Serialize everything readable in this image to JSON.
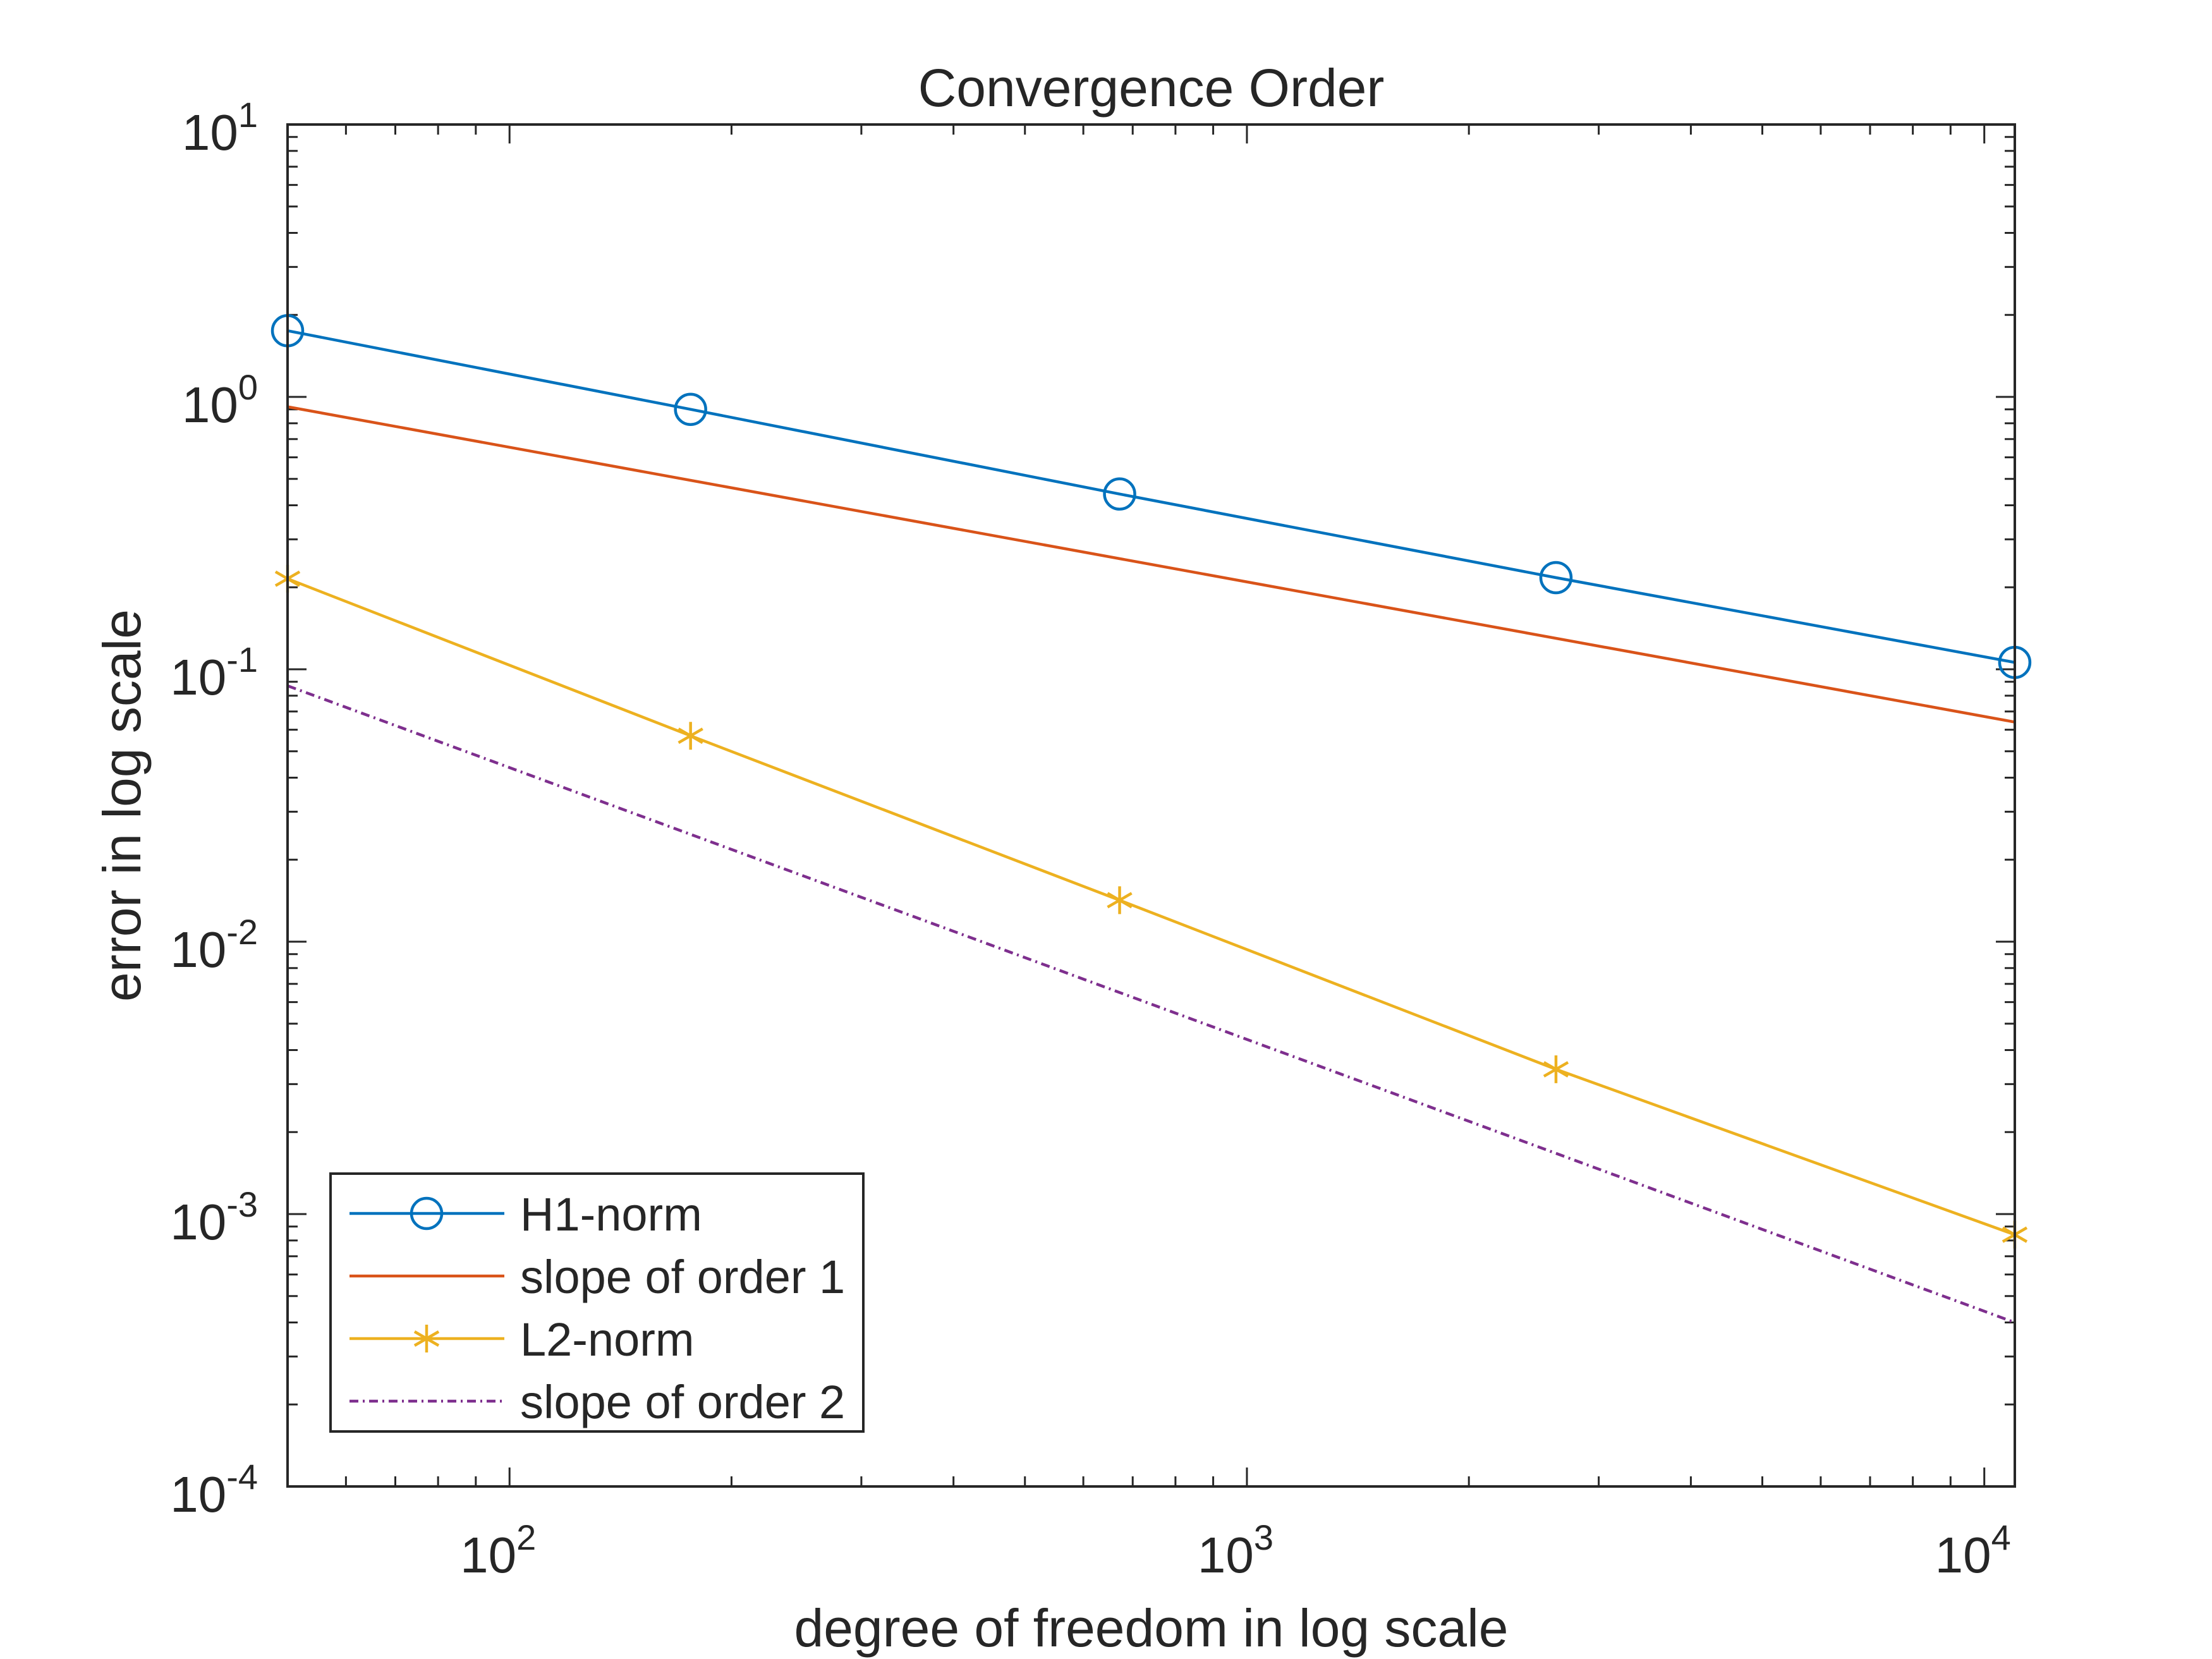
{
  "chart_data": {
    "type": "line",
    "title": "Convergence Order",
    "xlabel": "degree of freedom in log scale",
    "ylabel": "error in log scale",
    "xscale": "log",
    "yscale": "log",
    "xlim": [
      50,
      11000
    ],
    "ylim": [
      0.0001,
      10
    ],
    "xticks": [
      {
        "value": 100,
        "base": "10",
        "exp": "2"
      },
      {
        "value": 1000,
        "base": "10",
        "exp": "3"
      },
      {
        "value": 10000,
        "base": "10",
        "exp": "4"
      }
    ],
    "yticks": [
      {
        "value": 10,
        "base": "10",
        "exp": "1"
      },
      {
        "value": 1,
        "base": "10",
        "exp": "0"
      },
      {
        "value": 0.1,
        "base": "10",
        "exp": "-1"
      },
      {
        "value": 0.01,
        "base": "10",
        "exp": "-2"
      },
      {
        "value": 0.001,
        "base": "10",
        "exp": "-3"
      },
      {
        "value": 0.0001,
        "base": "10",
        "exp": "-4"
      }
    ],
    "grid": false,
    "box": true,
    "legend_position": "bottom-left",
    "series": [
      {
        "name": "H1-norm",
        "color": "#0072BD",
        "marker": "circle",
        "dash": "solid",
        "x": [
          50,
          176,
          672,
          2625,
          10998
        ],
        "y": [
          1.75,
          0.9,
          0.44,
          0.217,
          0.106
        ]
      },
      {
        "name": "slope of order 1",
        "color": "#D95319",
        "marker": "none",
        "dash": "solid",
        "x": [
          50,
          10998
        ],
        "y": [
          0.92,
          0.064
        ]
      },
      {
        "name": "L2-norm",
        "color": "#EDB120",
        "marker": "asterisk",
        "dash": "solid",
        "x": [
          50,
          176,
          672,
          2625,
          10998
        ],
        "y": [
          0.215,
          0.057,
          0.0142,
          0.0034,
          0.00084
        ]
      },
      {
        "name": "slope of order 2",
        "color": "#7E2F8E",
        "marker": "none",
        "dash": "dashdot",
        "x": [
          50,
          10998
        ],
        "y": [
          0.087,
          0.0004
        ]
      }
    ]
  }
}
